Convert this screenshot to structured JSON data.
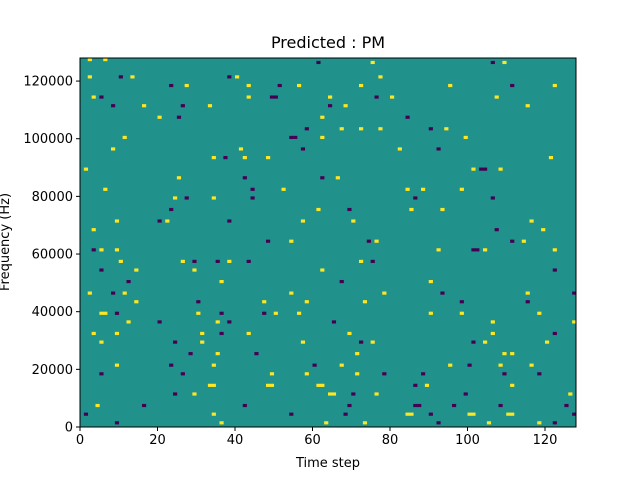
{
  "chart_data": {
    "type": "heatmap",
    "title": "Predicted : PM",
    "xlabel": "Time step",
    "ylabel": "Frequency (Hz)",
    "xlim": [
      0,
      128
    ],
    "ylim": [
      0,
      128000
    ],
    "x_ticks": [
      0,
      20,
      40,
      60,
      80,
      100,
      120
    ],
    "y_ticks": [
      0,
      20000,
      40000,
      60000,
      80000,
      100000,
      120000
    ],
    "x_tick_labels": [
      "0",
      "20",
      "40",
      "60",
      "80",
      "100",
      "120"
    ],
    "y_tick_labels": [
      "0",
      "20000",
      "40000",
      "60000",
      "80000",
      "100000",
      "120000"
    ],
    "grid": false,
    "colormap": {
      "background": "#21918c",
      "high": "#fde725",
      "low": "#440154"
    },
    "grid_size": {
      "cols": 128,
      "rows": 128
    },
    "cells": [
      {
        "t": 2,
        "f": 127,
        "v": 1
      },
      {
        "t": 6,
        "f": 127,
        "v": 1
      },
      {
        "t": 61,
        "f": 126,
        "v": -1
      },
      {
        "t": 75,
        "f": 126,
        "v": 1
      },
      {
        "t": 106,
        "f": 126,
        "v": -1
      },
      {
        "t": 109,
        "f": 126,
        "v": 1
      },
      {
        "t": 2,
        "f": 121,
        "v": 1
      },
      {
        "t": 10,
        "f": 121,
        "v": -1
      },
      {
        "t": 13,
        "f": 121,
        "v": 1
      },
      {
        "t": 38,
        "f": 121,
        "v": -1
      },
      {
        "t": 40,
        "f": 121,
        "v": 1
      },
      {
        "t": 77,
        "f": 121,
        "v": 1
      },
      {
        "t": 23,
        "f": 118,
        "v": -1
      },
      {
        "t": 27,
        "f": 118,
        "v": 1
      },
      {
        "t": 43,
        "f": 118,
        "v": 1
      },
      {
        "t": 51,
        "f": 118,
        "v": -1
      },
      {
        "t": 56,
        "f": 118,
        "v": 1
      },
      {
        "t": 72,
        "f": 118,
        "v": 1
      },
      {
        "t": 95,
        "f": 118,
        "v": 1
      },
      {
        "t": 111,
        "f": 118,
        "v": -1
      },
      {
        "t": 122,
        "f": 118,
        "v": 1
      },
      {
        "t": 3,
        "f": 114,
        "v": 1
      },
      {
        "t": 5,
        "f": 114,
        "v": -1
      },
      {
        "t": 43,
        "f": 114,
        "v": 1
      },
      {
        "t": 49,
        "f": 114,
        "v": -1
      },
      {
        "t": 50,
        "f": 114,
        "v": -1
      },
      {
        "t": 64,
        "f": 114,
        "v": 1
      },
      {
        "t": 76,
        "f": 114,
        "v": -1
      },
      {
        "t": 80,
        "f": 114,
        "v": 1
      },
      {
        "t": 107,
        "f": 114,
        "v": 1
      },
      {
        "t": 8,
        "f": 111,
        "v": -1
      },
      {
        "t": 16,
        "f": 111,
        "v": 1
      },
      {
        "t": 26,
        "f": 111,
        "v": -1
      },
      {
        "t": 33,
        "f": 111,
        "v": 1
      },
      {
        "t": 64,
        "f": 111,
        "v": -1
      },
      {
        "t": 68,
        "f": 111,
        "v": 1
      },
      {
        "t": 115,
        "f": 111,
        "v": 1
      },
      {
        "t": 20,
        "f": 107,
        "v": 1
      },
      {
        "t": 25,
        "f": 107,
        "v": -1
      },
      {
        "t": 62,
        "f": 107,
        "v": 1
      },
      {
        "t": 84,
        "f": 107,
        "v": -1
      },
      {
        "t": 58,
        "f": 103,
        "v": -1
      },
      {
        "t": 67,
        "f": 103,
        "v": 1
      },
      {
        "t": 72,
        "f": 103,
        "v": 1
      },
      {
        "t": 77,
        "f": 103,
        "v": 1
      },
      {
        "t": 90,
        "f": 103,
        "v": -1
      },
      {
        "t": 94,
        "f": 103,
        "v": 1
      },
      {
        "t": 11,
        "f": 100,
        "v": 1
      },
      {
        "t": 54,
        "f": 100,
        "v": -1
      },
      {
        "t": 55,
        "f": 100,
        "v": -1
      },
      {
        "t": 62,
        "f": 100,
        "v": 1
      },
      {
        "t": 99,
        "f": 100,
        "v": 1
      },
      {
        "t": 8,
        "f": 96,
        "v": 1
      },
      {
        "t": 41,
        "f": 96,
        "v": 1
      },
      {
        "t": 57,
        "f": 96,
        "v": -1
      },
      {
        "t": 82,
        "f": 96,
        "v": 1
      },
      {
        "t": 92,
        "f": 96,
        "v": -1
      },
      {
        "t": 34,
        "f": 93,
        "v": 1
      },
      {
        "t": 37,
        "f": 93,
        "v": -1
      },
      {
        "t": 42,
        "f": 93,
        "v": 1
      },
      {
        "t": 48,
        "f": 93,
        "v": 1
      },
      {
        "t": 121,
        "f": 93,
        "v": 1
      },
      {
        "t": 1,
        "f": 89,
        "v": 1
      },
      {
        "t": 101,
        "f": 89,
        "v": 1
      },
      {
        "t": 103,
        "f": 89,
        "v": -1
      },
      {
        "t": 104,
        "f": 89,
        "v": -1
      },
      {
        "t": 108,
        "f": 89,
        "v": 1
      },
      {
        "t": 25,
        "f": 86,
        "v": 1
      },
      {
        "t": 42,
        "f": 86,
        "v": -1
      },
      {
        "t": 62,
        "f": 86,
        "v": -1
      },
      {
        "t": 66,
        "f": 86,
        "v": 1
      },
      {
        "t": 6,
        "f": 82,
        "v": 1
      },
      {
        "t": 44,
        "f": 82,
        "v": -1
      },
      {
        "t": 52,
        "f": 82,
        "v": 1
      },
      {
        "t": 84,
        "f": 82,
        "v": 1
      },
      {
        "t": 88,
        "f": 82,
        "v": 1
      },
      {
        "t": 98,
        "f": 82,
        "v": 1
      },
      {
        "t": 24,
        "f": 79,
        "v": 1
      },
      {
        "t": 27,
        "f": 79,
        "v": -1
      },
      {
        "t": 34,
        "f": 79,
        "v": 1
      },
      {
        "t": 44,
        "f": 79,
        "v": -1
      },
      {
        "t": 86,
        "f": 79,
        "v": -1
      },
      {
        "t": 106,
        "f": 79,
        "v": -1
      },
      {
        "t": 23,
        "f": 75,
        "v": -1
      },
      {
        "t": 61,
        "f": 75,
        "v": 1
      },
      {
        "t": 69,
        "f": 75,
        "v": -1
      },
      {
        "t": 85,
        "f": 75,
        "v": 1
      },
      {
        "t": 93,
        "f": 75,
        "v": 1
      },
      {
        "t": 9,
        "f": 71,
        "v": 1
      },
      {
        "t": 20,
        "f": 71,
        "v": -1
      },
      {
        "t": 22,
        "f": 71,
        "v": 1
      },
      {
        "t": 38,
        "f": 71,
        "v": -1
      },
      {
        "t": 57,
        "f": 71,
        "v": 1
      },
      {
        "t": 70,
        "f": 71,
        "v": 1
      },
      {
        "t": 116,
        "f": 71,
        "v": 1
      },
      {
        "t": 3,
        "f": 68,
        "v": 1
      },
      {
        "t": 107,
        "f": 68,
        "v": -1
      },
      {
        "t": 119,
        "f": 68,
        "v": 1
      },
      {
        "t": 48,
        "f": 64,
        "v": -1
      },
      {
        "t": 54,
        "f": 64,
        "v": 1
      },
      {
        "t": 74,
        "f": 64,
        "v": -1
      },
      {
        "t": 76,
        "f": 64,
        "v": 1
      },
      {
        "t": 111,
        "f": 64,
        "v": -1
      },
      {
        "t": 114,
        "f": 64,
        "v": 1
      },
      {
        "t": 3,
        "f": 61,
        "v": -1
      },
      {
        "t": 5,
        "f": 61,
        "v": 1
      },
      {
        "t": 9,
        "f": 61,
        "v": 1
      },
      {
        "t": 92,
        "f": 61,
        "v": 1
      },
      {
        "t": 101,
        "f": 61,
        "v": -1
      },
      {
        "t": 102,
        "f": 61,
        "v": -1
      },
      {
        "t": 104,
        "f": 61,
        "v": 1
      },
      {
        "t": 122,
        "f": 61,
        "v": 1
      },
      {
        "t": 10,
        "f": 57,
        "v": 1
      },
      {
        "t": 26,
        "f": 57,
        "v": 1
      },
      {
        "t": 29,
        "f": 57,
        "v": -1
      },
      {
        "t": 35,
        "f": 57,
        "v": -1
      },
      {
        "t": 38,
        "f": 57,
        "v": 1
      },
      {
        "t": 43,
        "f": 57,
        "v": -1
      },
      {
        "t": 72,
        "f": 57,
        "v": 1
      },
      {
        "t": 75,
        "f": 57,
        "v": -1
      },
      {
        "t": 5,
        "f": 54,
        "v": -1
      },
      {
        "t": 14,
        "f": 54,
        "v": 1
      },
      {
        "t": 29,
        "f": 54,
        "v": 1
      },
      {
        "t": 62,
        "f": 54,
        "v": 1
      },
      {
        "t": 122,
        "f": 54,
        "v": -1
      },
      {
        "t": 12,
        "f": 50,
        "v": -1
      },
      {
        "t": 36,
        "f": 50,
        "v": 1
      },
      {
        "t": 67,
        "f": 50,
        "v": -1
      },
      {
        "t": 90,
        "f": 50,
        "v": 1
      },
      {
        "t": 2,
        "f": 46,
        "v": 1
      },
      {
        "t": 8,
        "f": 46,
        "v": -1
      },
      {
        "t": 11,
        "f": 46,
        "v": 1
      },
      {
        "t": 54,
        "f": 46,
        "v": 1
      },
      {
        "t": 78,
        "f": 46,
        "v": 1
      },
      {
        "t": 93,
        "f": 46,
        "v": -1
      },
      {
        "t": 115,
        "f": 46,
        "v": 1
      },
      {
        "t": 127,
        "f": 46,
        "v": -1
      },
      {
        "t": 14,
        "f": 43,
        "v": 1
      },
      {
        "t": 30,
        "f": 43,
        "v": -1
      },
      {
        "t": 47,
        "f": 43,
        "v": 1
      },
      {
        "t": 58,
        "f": 43,
        "v": 1
      },
      {
        "t": 73,
        "f": 43,
        "v": 1
      },
      {
        "t": 98,
        "f": 43,
        "v": -1
      },
      {
        "t": 115,
        "f": 43,
        "v": -1
      },
      {
        "t": 5,
        "f": 39,
        "v": 1
      },
      {
        "t": 6,
        "f": 39,
        "v": 1
      },
      {
        "t": 9,
        "f": 39,
        "v": -1
      },
      {
        "t": 30,
        "f": 39,
        "v": 1
      },
      {
        "t": 36,
        "f": 39,
        "v": -1
      },
      {
        "t": 47,
        "f": 39,
        "v": -1
      },
      {
        "t": 50,
        "f": 39,
        "v": 1
      },
      {
        "t": 56,
        "f": 39,
        "v": 1
      },
      {
        "t": 90,
        "f": 39,
        "v": 1
      },
      {
        "t": 98,
        "f": 39,
        "v": 1
      },
      {
        "t": 118,
        "f": 39,
        "v": 1
      },
      {
        "t": 12,
        "f": 36,
        "v": 1
      },
      {
        "t": 20,
        "f": 36,
        "v": -1
      },
      {
        "t": 35,
        "f": 36,
        "v": 1
      },
      {
        "t": 38,
        "f": 36,
        "v": -1
      },
      {
        "t": 65,
        "f": 36,
        "v": -1
      },
      {
        "t": 106,
        "f": 36,
        "v": 1
      },
      {
        "t": 127,
        "f": 36,
        "v": 1
      },
      {
        "t": 3,
        "f": 32,
        "v": 1
      },
      {
        "t": 9,
        "f": 32,
        "v": 1
      },
      {
        "t": 31,
        "f": 32,
        "v": 1
      },
      {
        "t": 36,
        "f": 32,
        "v": -1
      },
      {
        "t": 43,
        "f": 32,
        "v": 1
      },
      {
        "t": 69,
        "f": 32,
        "v": 1
      },
      {
        "t": 106,
        "f": 32,
        "v": 1
      },
      {
        "t": 122,
        "f": 32,
        "v": -1
      },
      {
        "t": 5,
        "f": 29,
        "v": 1
      },
      {
        "t": 24,
        "f": 29,
        "v": -1
      },
      {
        "t": 31,
        "f": 29,
        "v": 1
      },
      {
        "t": 57,
        "f": 29,
        "v": 1
      },
      {
        "t": 72,
        "f": 29,
        "v": -1
      },
      {
        "t": 75,
        "f": 29,
        "v": 1
      },
      {
        "t": 101,
        "f": 29,
        "v": -1
      },
      {
        "t": 104,
        "f": 29,
        "v": 1
      },
      {
        "t": 120,
        "f": 29,
        "v": 1
      },
      {
        "t": 28,
        "f": 25,
        "v": -1
      },
      {
        "t": 35,
        "f": 25,
        "v": 1
      },
      {
        "t": 45,
        "f": 25,
        "v": -1
      },
      {
        "t": 71,
        "f": 25,
        "v": 1
      },
      {
        "t": 109,
        "f": 25,
        "v": 1
      },
      {
        "t": 111,
        "f": 25,
        "v": 1
      },
      {
        "t": 9,
        "f": 21,
        "v": 1
      },
      {
        "t": 23,
        "f": 21,
        "v": -1
      },
      {
        "t": 34,
        "f": 21,
        "v": 1
      },
      {
        "t": 60,
        "f": 21,
        "v": -1
      },
      {
        "t": 67,
        "f": 21,
        "v": 1
      },
      {
        "t": 95,
        "f": 21,
        "v": 1
      },
      {
        "t": 100,
        "f": 21,
        "v": -1
      },
      {
        "t": 108,
        "f": 21,
        "v": 1
      },
      {
        "t": 116,
        "f": 21,
        "v": 1
      },
      {
        "t": 5,
        "f": 18,
        "v": -1
      },
      {
        "t": 26,
        "f": 18,
        "v": -1
      },
      {
        "t": 49,
        "f": 18,
        "v": 1
      },
      {
        "t": 58,
        "f": 18,
        "v": 1
      },
      {
        "t": 71,
        "f": 18,
        "v": 1
      },
      {
        "t": 78,
        "f": 18,
        "v": -1
      },
      {
        "t": 88,
        "f": 18,
        "v": -1
      },
      {
        "t": 109,
        "f": 18,
        "v": -1
      },
      {
        "t": 118,
        "f": 18,
        "v": -1
      },
      {
        "t": 33,
        "f": 14,
        "v": 1
      },
      {
        "t": 34,
        "f": 14,
        "v": 1
      },
      {
        "t": 48,
        "f": 14,
        "v": 1
      },
      {
        "t": 49,
        "f": 14,
        "v": 1
      },
      {
        "t": 61,
        "f": 14,
        "v": 1
      },
      {
        "t": 62,
        "f": 14,
        "v": 1
      },
      {
        "t": 86,
        "f": 14,
        "v": -1
      },
      {
        "t": 89,
        "f": 14,
        "v": 1
      },
      {
        "t": 111,
        "f": 14,
        "v": 1
      },
      {
        "t": 24,
        "f": 11,
        "v": -1
      },
      {
        "t": 29,
        "f": 11,
        "v": 1
      },
      {
        "t": 64,
        "f": 11,
        "v": 1
      },
      {
        "t": 65,
        "f": 11,
        "v": 1
      },
      {
        "t": 70,
        "f": 11,
        "v": -1
      },
      {
        "t": 76,
        "f": 11,
        "v": 1
      },
      {
        "t": 99,
        "f": 11,
        "v": -1
      },
      {
        "t": 126,
        "f": 11,
        "v": 1
      },
      {
        "t": 4,
        "f": 7,
        "v": 1
      },
      {
        "t": 16,
        "f": 7,
        "v": -1
      },
      {
        "t": 42,
        "f": 7,
        "v": -1
      },
      {
        "t": 69,
        "f": 7,
        "v": -1
      },
      {
        "t": 86,
        "f": 7,
        "v": -1
      },
      {
        "t": 87,
        "f": 7,
        "v": -1
      },
      {
        "t": 96,
        "f": 7,
        "v": -1
      },
      {
        "t": 108,
        "f": 7,
        "v": -1
      },
      {
        "t": 125,
        "f": 7,
        "v": -1
      },
      {
        "t": 1,
        "f": 4,
        "v": -1
      },
      {
        "t": 34,
        "f": 4,
        "v": 1
      },
      {
        "t": 54,
        "f": 4,
        "v": -1
      },
      {
        "t": 68,
        "f": 4,
        "v": -1
      },
      {
        "t": 84,
        "f": 4,
        "v": 1
      },
      {
        "t": 85,
        "f": 4,
        "v": 1
      },
      {
        "t": 90,
        "f": 4,
        "v": -1
      },
      {
        "t": 100,
        "f": 4,
        "v": 1
      },
      {
        "t": 101,
        "f": 4,
        "v": 1
      },
      {
        "t": 110,
        "f": 4,
        "v": 1
      },
      {
        "t": 111,
        "f": 4,
        "v": 1
      },
      {
        "t": 127,
        "f": 4,
        "v": -1
      },
      {
        "t": 9,
        "f": 1,
        "v": -1
      },
      {
        "t": 36,
        "f": 1,
        "v": 1
      },
      {
        "t": 63,
        "f": 1,
        "v": 1
      },
      {
        "t": 73,
        "f": 1,
        "v": 1
      },
      {
        "t": 92,
        "f": 1,
        "v": -1
      },
      {
        "t": 105,
        "f": 1,
        "v": 1
      },
      {
        "t": 118,
        "f": 1,
        "v": 1
      },
      {
        "t": 122,
        "f": 1,
        "v": -1
      }
    ]
  }
}
